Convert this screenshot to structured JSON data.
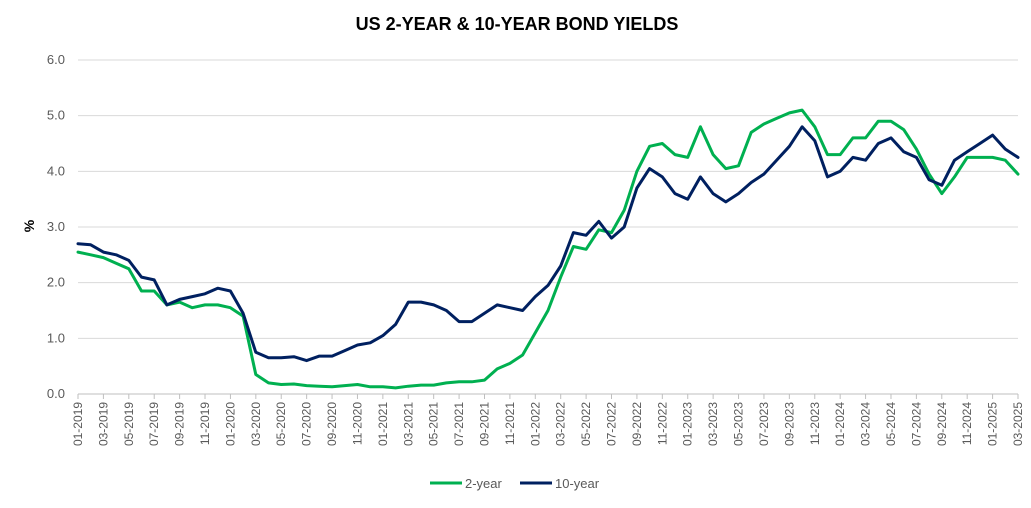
{
  "chart_data": {
    "type": "line",
    "title": "US 2-YEAR & 10-YEAR BOND YIELDS",
    "ylabel": "%",
    "xlabel": "",
    "ylim": [
      0,
      6
    ],
    "yticks": [
      "0.0",
      "1.0",
      "2.0",
      "3.0",
      "4.0",
      "5.0",
      "6.0"
    ],
    "grid": "horizontal",
    "legend_position": "bottom",
    "x_tick_labels": [
      "01-2019",
      "03-2019",
      "05-2019",
      "07-2019",
      "09-2019",
      "11-2019",
      "01-2020",
      "03-2020",
      "05-2020",
      "07-2020",
      "09-2020",
      "11-2020",
      "01-2021",
      "03-2021",
      "05-2021",
      "07-2021",
      "09-2021",
      "11-2021",
      "01-2022",
      "03-2022",
      "05-2022",
      "07-2022",
      "09-2022",
      "11-2022",
      "01-2023",
      "03-2023",
      "05-2023",
      "07-2023",
      "09-2023",
      "11-2023",
      "01-2024",
      "03-2024",
      "05-2024",
      "07-2024",
      "09-2024",
      "11-2024",
      "01-2025",
      "03-2025"
    ],
    "x": [
      "01-2019",
      "02-2019",
      "03-2019",
      "04-2019",
      "05-2019",
      "06-2019",
      "07-2019",
      "08-2019",
      "09-2019",
      "10-2019",
      "11-2019",
      "12-2019",
      "01-2020",
      "02-2020",
      "03-2020",
      "04-2020",
      "05-2020",
      "06-2020",
      "07-2020",
      "08-2020",
      "09-2020",
      "10-2020",
      "11-2020",
      "12-2020",
      "01-2021",
      "02-2021",
      "03-2021",
      "04-2021",
      "05-2021",
      "06-2021",
      "07-2021",
      "08-2021",
      "09-2021",
      "10-2021",
      "11-2021",
      "12-2021",
      "01-2022",
      "02-2022",
      "03-2022",
      "04-2022",
      "05-2022",
      "06-2022",
      "07-2022",
      "08-2022",
      "09-2022",
      "10-2022",
      "11-2022",
      "12-2022",
      "01-2023",
      "02-2023",
      "03-2023",
      "04-2023",
      "05-2023",
      "06-2023",
      "07-2023",
      "08-2023",
      "09-2023",
      "10-2023",
      "11-2023",
      "12-2023",
      "01-2024",
      "02-2024",
      "03-2024",
      "04-2024",
      "05-2024",
      "06-2024",
      "07-2024",
      "08-2024",
      "09-2024",
      "10-2024",
      "11-2024",
      "12-2024",
      "01-2025",
      "02-2025",
      "03-2025"
    ],
    "series": [
      {
        "name": "2-year",
        "color": "#00B050",
        "values": [
          2.55,
          2.5,
          2.45,
          2.35,
          2.25,
          1.85,
          1.85,
          1.6,
          1.65,
          1.55,
          1.6,
          1.6,
          1.55,
          1.4,
          0.35,
          0.2,
          0.17,
          0.18,
          0.15,
          0.14,
          0.13,
          0.15,
          0.17,
          0.13,
          0.13,
          0.11,
          0.14,
          0.16,
          0.16,
          0.2,
          0.22,
          0.22,
          0.25,
          0.45,
          0.55,
          0.7,
          1.1,
          1.5,
          2.1,
          2.65,
          2.6,
          2.95,
          2.9,
          3.3,
          4.0,
          4.45,
          4.5,
          4.3,
          4.25,
          4.8,
          4.3,
          4.05,
          4.1,
          4.7,
          4.85,
          4.95,
          5.05,
          5.1,
          4.8,
          4.3,
          4.3,
          4.6,
          4.6,
          4.9,
          4.9,
          4.75,
          4.4,
          3.95,
          3.6,
          3.9,
          4.25,
          4.25,
          4.25,
          4.2,
          3.95
        ]
      },
      {
        "name": "10-year",
        "color": "#002060",
        "values": [
          2.7,
          2.68,
          2.55,
          2.5,
          2.4,
          2.1,
          2.05,
          1.6,
          1.7,
          1.75,
          1.8,
          1.9,
          1.85,
          1.45,
          0.75,
          0.65,
          0.65,
          0.67,
          0.6,
          0.68,
          0.68,
          0.78,
          0.88,
          0.92,
          1.05,
          1.25,
          1.65,
          1.65,
          1.6,
          1.5,
          1.3,
          1.3,
          1.45,
          1.6,
          1.55,
          1.5,
          1.75,
          1.95,
          2.3,
          2.9,
          2.85,
          3.1,
          2.8,
          3.0,
          3.7,
          4.05,
          3.9,
          3.6,
          3.5,
          3.9,
          3.6,
          3.45,
          3.6,
          3.8,
          3.95,
          4.2,
          4.45,
          4.8,
          4.55,
          3.9,
          4.0,
          4.25,
          4.2,
          4.5,
          4.6,
          4.35,
          4.25,
          3.85,
          3.75,
          4.2,
          4.35,
          4.5,
          4.65,
          4.4,
          4.25
        ]
      }
    ]
  }
}
